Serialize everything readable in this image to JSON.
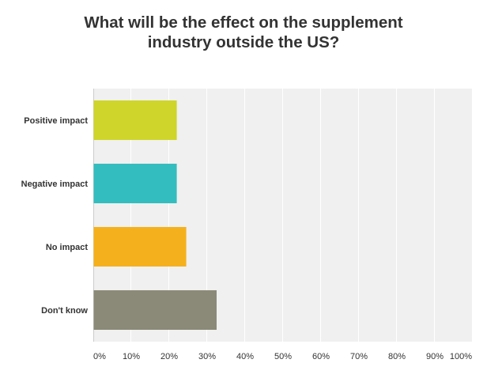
{
  "chart_data": {
    "type": "bar",
    "orientation": "horizontal",
    "title_lines": [
      "What will be the effect on the supplement",
      "industry outside the US?"
    ],
    "categories": [
      "Positive impact",
      "Negative impact",
      "No impact",
      "Don't know"
    ],
    "values": [
      22,
      22,
      24.5,
      32.5
    ],
    "colors": [
      "#cfd52a",
      "#34bdbe",
      "#f5b11d",
      "#8b8a78"
    ],
    "xlim": [
      0,
      100
    ],
    "x_ticks": [
      "0%",
      "10%",
      "20%",
      "30%",
      "40%",
      "50%",
      "60%",
      "70%",
      "80%",
      "90%",
      "100%"
    ],
    "grid": true,
    "plot_background": "#f0f0f0",
    "grid_color": "#ffffff",
    "legend": "none"
  }
}
